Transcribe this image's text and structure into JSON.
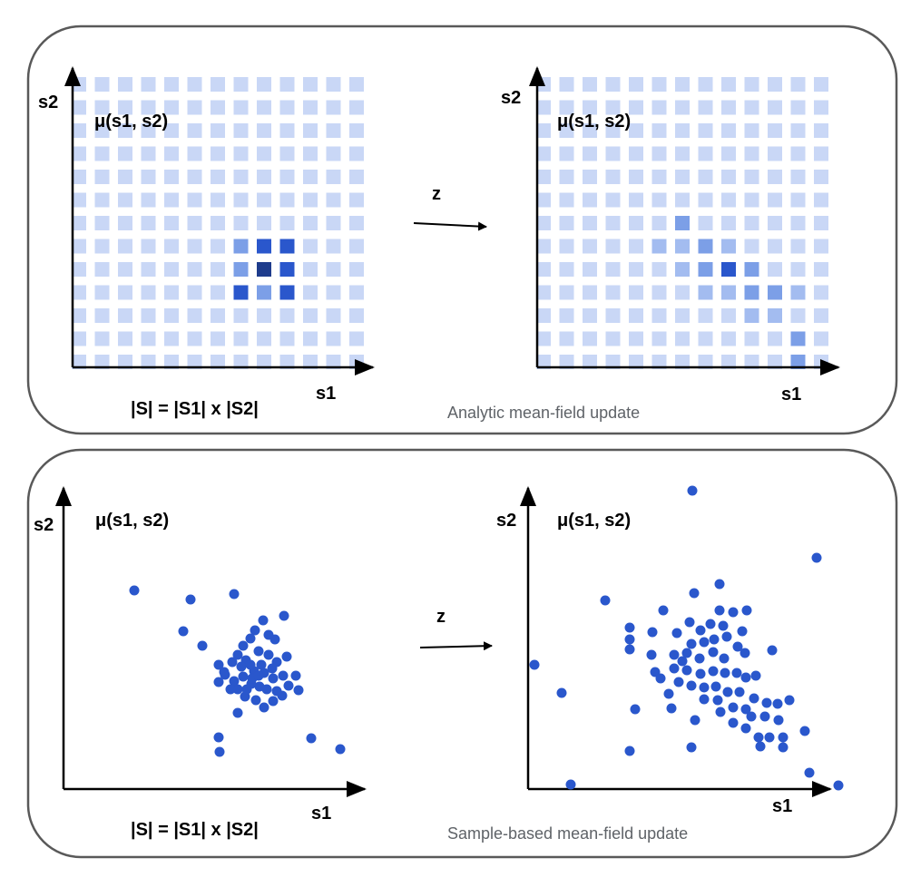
{
  "colors": {
    "frame": "#595959",
    "axis": "#000000",
    "arrow": "#000000",
    "grid_base": "#c9d7f6",
    "grid_mid": "#a3bcf0",
    "grid_med": "#7c9fe7",
    "grid_strong": "#2a57cc",
    "grid_darkest": "#1e3c8c",
    "dot": "#2a57cc",
    "caption": "#5f6368"
  },
  "panels": {
    "analytic": {
      "left": {
        "y_label": "s2",
        "x_label": "s1",
        "mu_label": "μ(s1, s2)",
        "size_label": "|S| = |S1| x |S2|",
        "highlights": [
          {
            "c": 7,
            "r": 7,
            "shade": "grid_med"
          },
          {
            "c": 8,
            "r": 7,
            "shade": "grid_strong"
          },
          {
            "c": 9,
            "r": 7,
            "shade": "grid_strong"
          },
          {
            "c": 7,
            "r": 8,
            "shade": "grid_med"
          },
          {
            "c": 8,
            "r": 8,
            "shade": "grid_darkest"
          },
          {
            "c": 9,
            "r": 8,
            "shade": "grid_strong"
          },
          {
            "c": 7,
            "r": 9,
            "shade": "grid_strong"
          },
          {
            "c": 8,
            "r": 9,
            "shade": "grid_med"
          },
          {
            "c": 9,
            "r": 9,
            "shade": "grid_strong"
          }
        ]
      },
      "arrow_label": "z",
      "right": {
        "y_label": "s2",
        "x_label": "s1",
        "mu_label": "μ(s1, s2)",
        "highlights": [
          {
            "c": 6,
            "r": 6,
            "shade": "grid_med"
          },
          {
            "c": 5,
            "r": 7,
            "shade": "grid_mid"
          },
          {
            "c": 6,
            "r": 7,
            "shade": "grid_mid"
          },
          {
            "c": 7,
            "r": 7,
            "shade": "grid_med"
          },
          {
            "c": 8,
            "r": 7,
            "shade": "grid_mid"
          },
          {
            "c": 6,
            "r": 8,
            "shade": "grid_mid"
          },
          {
            "c": 7,
            "r": 8,
            "shade": "grid_med"
          },
          {
            "c": 8,
            "r": 8,
            "shade": "grid_strong"
          },
          {
            "c": 9,
            "r": 8,
            "shade": "grid_med"
          },
          {
            "c": 7,
            "r": 9,
            "shade": "grid_mid"
          },
          {
            "c": 8,
            "r": 9,
            "shade": "grid_mid"
          },
          {
            "c": 9,
            "r": 9,
            "shade": "grid_med"
          },
          {
            "c": 10,
            "r": 9,
            "shade": "grid_med"
          },
          {
            "c": 11,
            "r": 9,
            "shade": "grid_mid"
          },
          {
            "c": 9,
            "r": 10,
            "shade": "grid_mid"
          },
          {
            "c": 10,
            "r": 10,
            "shade": "grid_mid"
          },
          {
            "c": 11,
            "r": 11,
            "shade": "grid_med"
          },
          {
            "c": 11,
            "r": 12,
            "shade": "grid_med"
          }
        ]
      },
      "caption": "Analytic mean-field update"
    },
    "sample": {
      "left": {
        "y_label": "s2",
        "x_label": "s1",
        "mu_label": "μ(s1, s2)",
        "size_label": "|S| = |S1| x |S2|"
      },
      "arrow_label": "z",
      "right": {
        "y_label": "s2",
        "x_label": "s1",
        "mu_label": "μ(s1, s2)"
      },
      "caption": "Sample-based mean-field update"
    }
  },
  "grid": {
    "cols": 13,
    "rows": 13
  }
}
